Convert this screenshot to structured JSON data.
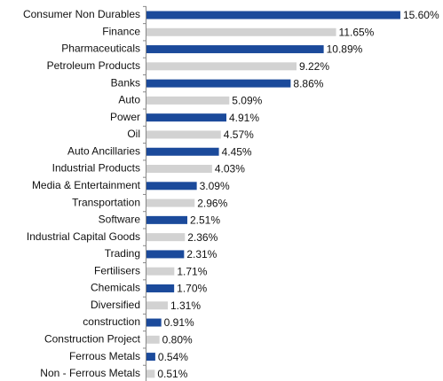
{
  "chart_data": {
    "type": "barh",
    "categories": [
      "Consumer Non Durables",
      "Finance",
      "Pharmaceuticals",
      "Petroleum Products",
      "Banks",
      "Auto",
      "Power",
      "Oil",
      "Auto Ancillaries",
      "Industrial Products",
      "Media & Entertainment",
      "Transportation",
      "Software",
      "Industrial Capital Goods",
      "Trading",
      "Fertilisers",
      "Chemicals",
      "Diversified",
      "construction",
      "Construction Project",
      "Ferrous Metals",
      "Non - Ferrous Metals"
    ],
    "values": [
      15.6,
      11.65,
      10.89,
      9.22,
      8.86,
      5.09,
      4.91,
      4.57,
      4.45,
      4.03,
      3.09,
      2.96,
      2.51,
      2.36,
      2.31,
      1.71,
      1.7,
      1.31,
      0.91,
      0.8,
      0.54,
      0.51
    ],
    "value_labels": [
      "15.60%",
      "11.65%",
      "10.89%",
      "9.22%",
      "8.86%",
      "5.09%",
      "4.91%",
      "4.57%",
      "4.45%",
      "4.03%",
      "3.09%",
      "2.96%",
      "2.51%",
      "2.36%",
      "2.31%",
      "1.71%",
      "1.70%",
      "1.31%",
      "0.91%",
      "0.80%",
      "0.54%",
      "0.51%"
    ],
    "colors": [
      "#1b4a9b",
      "#d2d2d2",
      "#1b4a9b",
      "#d2d2d2",
      "#1b4a9b",
      "#d2d2d2",
      "#1b4a9b",
      "#d2d2d2",
      "#1b4a9b",
      "#d2d2d2",
      "#1b4a9b",
      "#d2d2d2",
      "#1b4a9b",
      "#d2d2d2",
      "#1b4a9b",
      "#d2d2d2",
      "#1b4a9b",
      "#d2d2d2",
      "#1b4a9b",
      "#d2d2d2",
      "#1b4a9b",
      "#d2d2d2"
    ]
  }
}
